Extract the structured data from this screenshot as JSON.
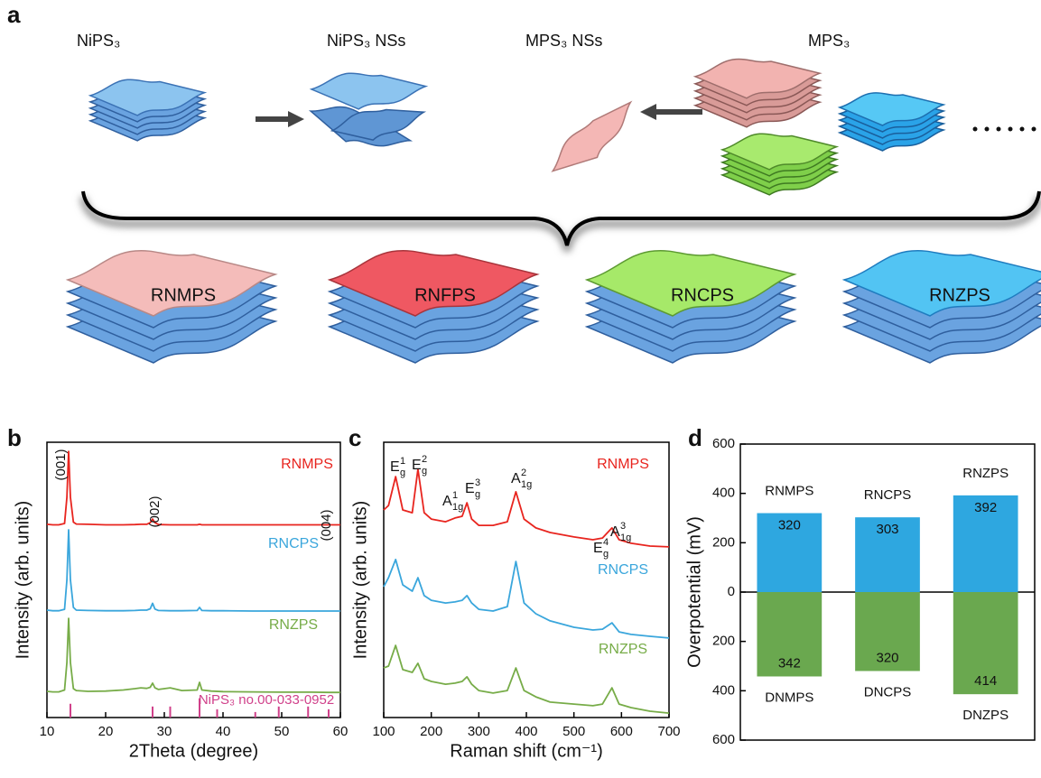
{
  "panel_a": {
    "label": "a",
    "stages": [
      "NiPS₃",
      "NiPS₃ NSs",
      "MPS₃ NSs",
      "MPS₃"
    ],
    "products": [
      "RNMPS",
      "RNFPS",
      "RNCPS",
      "RNZPS"
    ]
  },
  "chart_data": [
    {
      "type": "line",
      "label": "b",
      "xlabel": "2Theta (degree)",
      "ylabel": "Intensity (arb. units)",
      "xlim": [
        10,
        60
      ],
      "xticks": [
        10,
        20,
        30,
        40,
        50,
        60
      ],
      "ylim": [
        0,
        100
      ],
      "x": [
        10,
        11,
        12,
        13,
        13.4,
        13.7,
        14,
        14.5,
        15,
        17,
        20,
        23,
        25,
        26,
        27,
        27.6,
        28,
        28.4,
        29,
        31,
        33,
        35.6,
        36,
        36.4,
        38,
        40,
        45,
        50,
        55,
        58,
        60
      ],
      "series": [
        {
          "name": "RNMPS",
          "color": "#e8251f",
          "values": [
            70.2,
            70.0,
            70.0,
            70.5,
            80,
            96.7,
            80,
            71,
            70.3,
            70.2,
            70,
            70,
            70.1,
            70.2,
            70.2,
            70.8,
            72.1,
            70.8,
            70.1,
            70,
            70,
            70,
            70.2,
            70,
            70,
            70,
            70,
            70,
            70,
            70,
            70
          ]
        },
        {
          "name": "RNCPS",
          "color": "#3aa6dc",
          "values": [
            39,
            38.8,
            38.8,
            39.3,
            50,
            68.2,
            50,
            40,
            39,
            38.9,
            38.8,
            38.8,
            38.9,
            39,
            39,
            39.5,
            41.5,
            39.4,
            38.9,
            38.8,
            38.8,
            38.9,
            40,
            38.9,
            38.8,
            38.8,
            38.7,
            38.7,
            38.7,
            38.7,
            38.7
          ]
        },
        {
          "name": "RNZPS",
          "color": "#77ac48",
          "values": [
            9.5,
            9.3,
            9.3,
            10,
            20,
            36,
            20,
            10.5,
            9.8,
            9.5,
            9.6,
            10,
            10.5,
            10.8,
            10.6,
            11,
            12.5,
            10.8,
            10.2,
            10.8,
            9.8,
            10,
            12.8,
            10,
            9.6,
            9.4,
            9.3,
            9.2,
            9.2,
            9.1,
            9.1
          ]
        }
      ],
      "annotations": [
        "(001)",
        "(002)",
        "(004)"
      ],
      "reference": {
        "name": "NiPS₃ no.00-033-0952",
        "color": "#d0408a",
        "x": [
          14,
          28,
          31,
          36,
          39,
          45.5,
          49.5,
          54.5,
          58
        ],
        "values": [
          5,
          4,
          4,
          7,
          3,
          2,
          4,
          4,
          3
        ]
      }
    },
    {
      "type": "line",
      "label": "c",
      "xlabel": "Raman shift (cm⁻¹)",
      "ylabel": "Intensity (arb. units)",
      "xlim": [
        100,
        700
      ],
      "xticks": [
        100,
        200,
        300,
        400,
        500,
        600,
        700
      ],
      "ylim": [
        0,
        100
      ],
      "x": [
        100,
        110,
        125,
        140,
        160,
        172,
        185,
        200,
        230,
        250,
        265,
        275,
        285,
        300,
        330,
        360,
        378,
        395,
        420,
        450,
        500,
        540,
        560,
        580,
        595,
        620,
        660,
        700
      ],
      "series": [
        {
          "name": "RNMPS",
          "color": "#e8251f",
          "values": [
            75.4,
            77.0,
            87.5,
            75.4,
            74.4,
            90.2,
            74.4,
            72.1,
            71.1,
            72.5,
            73.1,
            78.0,
            72.1,
            69.8,
            69.8,
            71.1,
            82.0,
            72.1,
            68.9,
            67.2,
            65.6,
            64.6,
            65.2,
            68.9,
            64.6,
            63.3,
            62.3,
            62.0
          ]
        },
        {
          "name": "RNCPS",
          "color": "#3aa6dc",
          "values": [
            47.5,
            50.8,
            57.4,
            48.2,
            45.9,
            50.8,
            44.3,
            42.6,
            41.6,
            42.0,
            42.6,
            44.3,
            41.6,
            39.3,
            38.7,
            40.3,
            56.7,
            41.6,
            37.7,
            35.1,
            32.8,
            31.8,
            32.1,
            34.4,
            31.1,
            30.2,
            29.5,
            28.9
          ]
        },
        {
          "name": "RNZPS",
          "color": "#77ac48",
          "values": [
            18.0,
            18.7,
            26.2,
            17.4,
            16.4,
            19.7,
            14.1,
            13.1,
            12.1,
            12.5,
            13.1,
            14.8,
            12.1,
            9.8,
            8.9,
            9.8,
            18.0,
            9.8,
            7.5,
            5.6,
            4.9,
            4.3,
            4.9,
            10.8,
            4.9,
            3.6,
            2.3,
            1.6
          ]
        }
      ],
      "annotations": [
        {
          "base": "E",
          "sup": "1",
          "sub": "g"
        },
        {
          "base": "E",
          "sup": "2",
          "sub": "g"
        },
        {
          "base": "A",
          "sup": "1",
          "sub": "1g"
        },
        {
          "base": "E",
          "sup": "3",
          "sub": "g"
        },
        {
          "base": "A",
          "sup": "2",
          "sub": "1g"
        },
        {
          "base": "E",
          "sup": "4",
          "sub": "g"
        },
        {
          "base": "A",
          "sup": "3",
          "sub": "1g"
        }
      ]
    },
    {
      "type": "bar",
      "label": "d",
      "ylabel": "Overpotential (mV)",
      "ylim": [
        -600,
        600
      ],
      "yticks": [
        600,
        400,
        200,
        0,
        {
          "value": -200,
          "label": "200"
        },
        {
          "value": -400,
          "label": "400"
        },
        {
          "value": -600,
          "label": "600"
        }
      ],
      "series": [
        {
          "categories": [
            "RNMPS",
            "RNCPS",
            "RNZPS"
          ],
          "color": "#2ea7e0",
          "values": [
            320,
            303,
            392
          ]
        },
        {
          "categories": [
            "DNMPS",
            "DNCPS",
            "DNZPS"
          ],
          "color": "#6aa84f",
          "values": [
            -342,
            -320,
            -414
          ],
          "value_labels": [
            "342",
            "320",
            "414"
          ]
        }
      ]
    }
  ]
}
